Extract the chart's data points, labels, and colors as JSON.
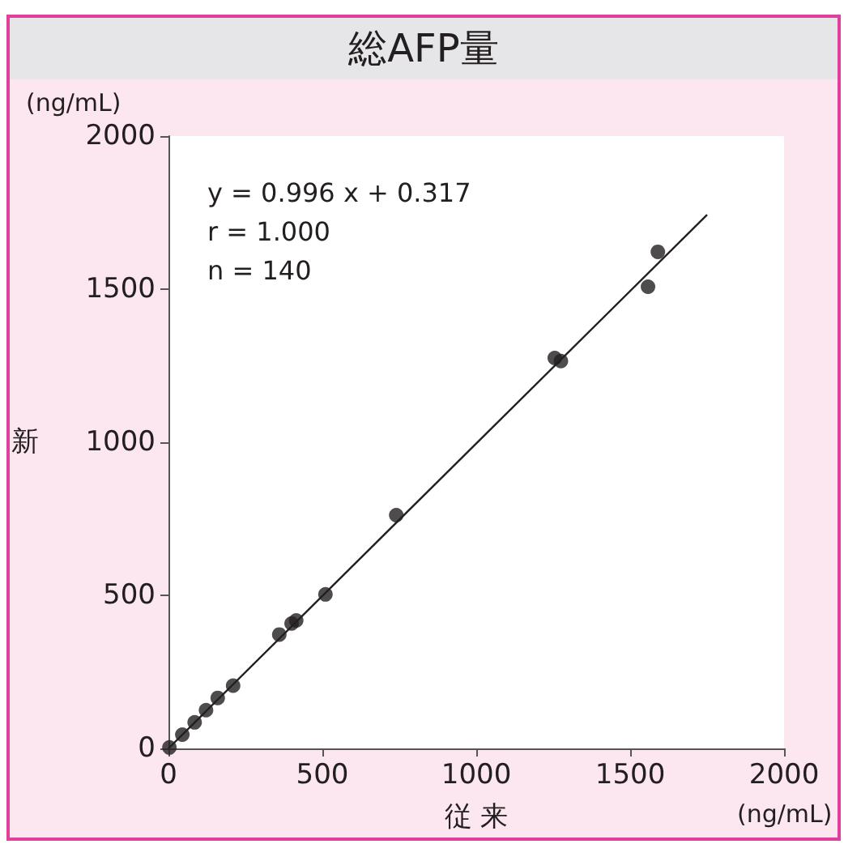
{
  "chart_data": {
    "type": "scatter",
    "title": "総AFP量",
    "xlabel": "従 来",
    "ylabel": "新",
    "annotations": [
      "(ng/mL)",
      "(ng/mL)",
      "y = 0.996 x + 0.317",
      "r = 1.000",
      "n = 140"
    ],
    "xlim": [
      0,
      2000
    ],
    "xticks": [
      0,
      500,
      1000,
      1500,
      2000
    ],
    "ylim": [
      0,
      2000
    ],
    "yticks": [
      0,
      500,
      1000,
      1500,
      2000
    ],
    "grid": false,
    "marker": "circle",
    "series": [
      {
        "color": "#231f20",
        "x": [
          3,
          45,
          85,
          122,
          160,
          210,
          360,
          400,
          415,
          510,
          740,
          1255,
          1275,
          1558,
          1590
        ],
        "values": [
          3,
          45,
          85,
          125,
          165,
          205,
          372,
          408,
          418,
          503,
          762,
          1275,
          1265,
          1508,
          1622
        ]
      },
      {
        "type": "line",
        "color": "#231f20",
        "marker": "none",
        "x": [
          0,
          1750
        ],
        "values": [
          0,
          1743
        ]
      }
    ]
  }
}
